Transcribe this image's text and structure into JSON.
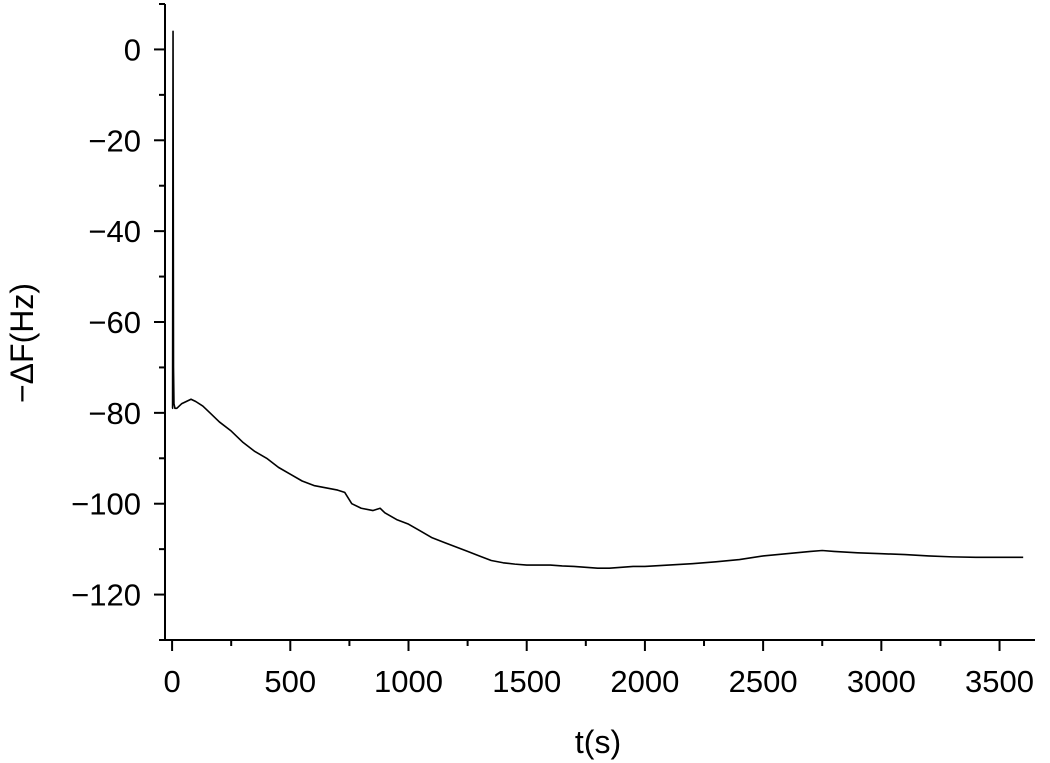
{
  "chart_data": {
    "type": "line",
    "title": "",
    "xlabel": "t(s)",
    "ylabel": "−ΔF(Hz)",
    "xlim": [
      -30,
      3650
    ],
    "ylim": [
      -130,
      10
    ],
    "xticks": [
      0,
      500,
      1000,
      1500,
      2000,
      2500,
      3000,
      3500
    ],
    "xtick_labels": [
      "0",
      "500",
      "1000",
      "1500",
      "2000",
      "2500",
      "3000",
      "3500"
    ],
    "xminor_step": 250,
    "yticks": [
      0,
      -20,
      -40,
      -60,
      -80,
      -100,
      -120
    ],
    "ytick_labels": [
      "0",
      "−20",
      "−40",
      "−60",
      "−80",
      "−100",
      "−120"
    ],
    "yminor_step": 10,
    "grid": false,
    "legend": "none",
    "line_color": "#000000",
    "series": [
      {
        "x": [
          0,
          2,
          4,
          6,
          8,
          12,
          20,
          40,
          60,
          80,
          100,
          130,
          160,
          200,
          250,
          300,
          350,
          400,
          450,
          500,
          550,
          600,
          650,
          700,
          730,
          760,
          800,
          850,
          880,
          900,
          950,
          1000,
          1050,
          1100,
          1150,
          1200,
          1250,
          1300,
          1350,
          1400,
          1450,
          1500,
          1550,
          1600,
          1650,
          1700,
          1750,
          1800,
          1850,
          1900,
          1950,
          2000,
          2100,
          2200,
          2300,
          2400,
          2500,
          2600,
          2700,
          2750,
          2800,
          2900,
          3000,
          3100,
          3200,
          3300,
          3400,
          3500,
          3600
        ],
        "y": [
          -79,
          -79,
          4,
          -70,
          -78,
          -79,
          -79,
          -78,
          -77.5,
          -77,
          -77.5,
          -78.5,
          -80,
          -82,
          -84,
          -86.5,
          -88.5,
          -90,
          -92,
          -93.5,
          -95,
          -96,
          -96.5,
          -97,
          -97.5,
          -100,
          -101,
          -101.5,
          -101,
          -102,
          -103.5,
          -104.5,
          -106,
          -107.5,
          -108.5,
          -109.5,
          -110.5,
          -111.5,
          -112.5,
          -113,
          -113.3,
          -113.5,
          -113.5,
          -113.5,
          -113.7,
          -113.8,
          -114,
          -114.2,
          -114.2,
          -114,
          -113.8,
          -113.8,
          -113.5,
          -113.2,
          -112.8,
          -112.3,
          -111.5,
          -111,
          -110.5,
          -110.3,
          -110.5,
          -110.8,
          -111,
          -111.2,
          -111.5,
          -111.7,
          -111.8,
          -111.8,
          -111.8
        ]
      }
    ]
  }
}
